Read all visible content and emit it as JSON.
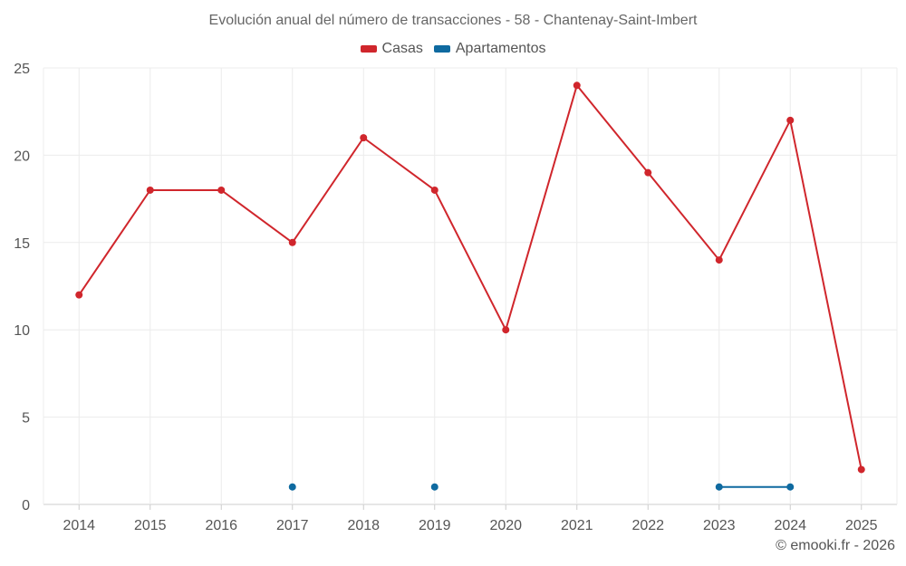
{
  "chart_data": {
    "type": "line",
    "title": "Evolución anual del número de transacciones - 58 - Chantenay-Saint-Imbert",
    "xlabel": "",
    "ylabel": "",
    "categories": [
      "2014",
      "2015",
      "2016",
      "2017",
      "2018",
      "2019",
      "2020",
      "2021",
      "2022",
      "2023",
      "2024",
      "2025"
    ],
    "ylim": [
      0,
      25
    ],
    "yticks": [
      0,
      5,
      10,
      15,
      20,
      25
    ],
    "grid": true,
    "legend_position": "top-center",
    "series": [
      {
        "name": "Casas",
        "color": "#d0262c",
        "values": [
          12,
          18,
          18,
          15,
          21,
          18,
          10,
          24,
          19,
          14,
          22,
          2
        ]
      },
      {
        "name": "Apartamentos",
        "color": "#0f6aa0",
        "values": [
          null,
          null,
          null,
          1,
          null,
          1,
          null,
          null,
          null,
          1,
          1,
          null
        ]
      }
    ]
  },
  "credit": "© emooki.fr - 2026"
}
